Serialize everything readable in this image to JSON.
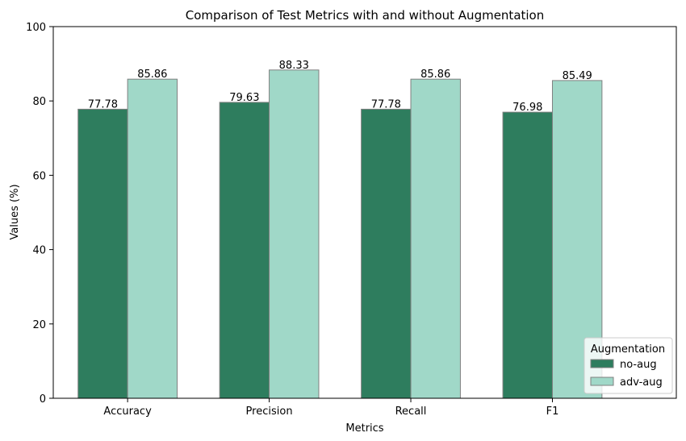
{
  "chart_data": {
    "type": "bar",
    "title": "Comparison of Test Metrics with and without Augmentation",
    "xlabel": "Metrics",
    "ylabel": "Values (%)",
    "categories": [
      "Accuracy",
      "Precision",
      "Recall",
      "F1"
    ],
    "ylim": [
      0,
      100
    ],
    "yticks": [
      0,
      20,
      40,
      60,
      80,
      100
    ],
    "grid": false,
    "series": [
      {
        "name": "no-aug",
        "values": [
          77.78,
          79.63,
          77.78,
          76.98
        ],
        "color": "#2e7d5e"
      },
      {
        "name": "adv-aug",
        "values": [
          85.86,
          88.33,
          85.86,
          85.49
        ],
        "color": "#a0d8c8"
      }
    ],
    "bar_edge_color": "#808080",
    "legend": {
      "title": "Augmentation",
      "placement": "lower-right"
    }
  }
}
